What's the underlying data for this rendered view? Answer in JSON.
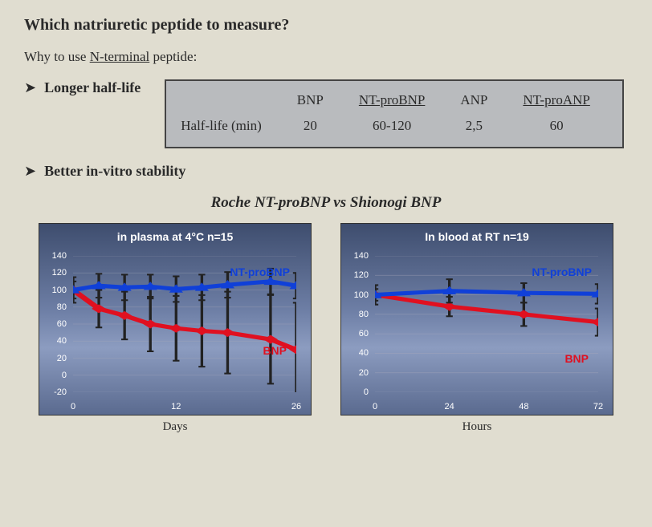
{
  "title": "Which natriuretic peptide to measure?",
  "subtitle_prefix": "Why to use ",
  "subtitle_ul": "N-terminal",
  "subtitle_suffix": " peptide:",
  "bullets": {
    "b1": "Longer half-life",
    "b2": "Better in-vitro stability"
  },
  "halflife_table": {
    "row_label": "Half-life (min)",
    "cols": [
      {
        "name": "BNP",
        "underlined": false,
        "value": "20"
      },
      {
        "name": "NT-proBNP",
        "underlined": true,
        "value": "60-120"
      },
      {
        "name": "ANP",
        "underlined": false,
        "value": "2,5"
      },
      {
        "name": "NT-proANP",
        "underlined": true,
        "value": "60"
      }
    ]
  },
  "charts_section_title": "Roche NT-proBNP vs Shionogi BNP",
  "colors": {
    "nt": "#1040d8",
    "bnp": "#e01020",
    "errbar": "#222222",
    "chart_bg_top": "#3e4d6e",
    "chart_bg_bot": "#5a6a8f",
    "text_white": "#ffffff"
  },
  "chart_left": {
    "title": "in plasma  at 4°C  n=15",
    "x_title": "Days",
    "ylim": [
      -20,
      140
    ],
    "y_ticks": [
      -20,
      0,
      20,
      40,
      60,
      80,
      100,
      120,
      140
    ],
    "xlim": [
      0,
      26
    ],
    "x_ticks": [
      0,
      12,
      26
    ],
    "nt_label": "NT-proBNP",
    "bnp_label": "BNP",
    "series_nt": {
      "x": [
        0,
        3,
        6,
        9,
        12,
        15,
        18,
        23,
        26
      ],
      "y": [
        100,
        105,
        103,
        104,
        101,
        103,
        106,
        110,
        105
      ],
      "err": [
        15,
        14,
        15,
        14,
        15,
        15,
        15,
        15,
        15
      ]
    },
    "series_bnp": {
      "x": [
        0,
        3,
        6,
        9,
        12,
        15,
        18,
        23,
        26
      ],
      "y": [
        100,
        78,
        70,
        60,
        55,
        52,
        50,
        42,
        30
      ],
      "err": [
        10,
        22,
        28,
        32,
        38,
        42,
        48,
        52,
        55
      ]
    }
  },
  "chart_right": {
    "title": "In blood at RT  n=19",
    "x_title": "Hours",
    "ylim": [
      0,
      140
    ],
    "y_ticks": [
      0,
      20,
      40,
      60,
      80,
      100,
      120,
      140
    ],
    "xlim": [
      0,
      72
    ],
    "x_ticks": [
      0,
      24,
      48,
      72
    ],
    "nt_label": "NT-proBNP",
    "bnp_label": "BNP",
    "series_nt": {
      "x": [
        0,
        24,
        48,
        72
      ],
      "y": [
        100,
        104,
        102,
        101
      ],
      "err": [
        10,
        12,
        10,
        10
      ]
    },
    "series_bnp": {
      "x": [
        0,
        24,
        48,
        72
      ],
      "y": [
        100,
        88,
        80,
        72
      ],
      "err": [
        6,
        10,
        12,
        14
      ]
    }
  }
}
